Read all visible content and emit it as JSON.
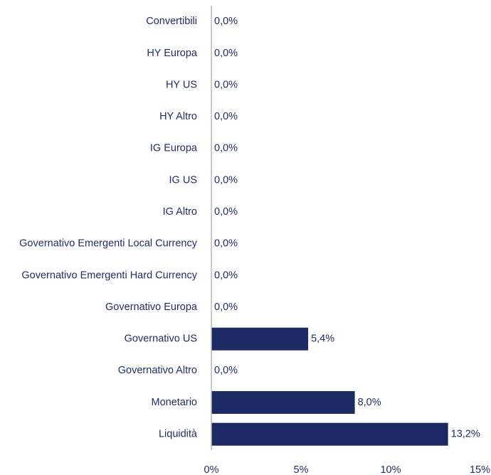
{
  "chart_data": {
    "type": "hbar",
    "categories": [
      "Convertibili",
      "HY Europa",
      "HY US",
      "HY Altro",
      "IG Europa",
      "IG US",
      "IG Altro",
      "Governativo Emergenti Local Currency",
      "Governativo Emergenti Hard Currency",
      "Governativo Europa",
      "Governativo US",
      "Governativo Altro",
      "Monetario",
      "Liquidità"
    ],
    "values": [
      0,
      0,
      0,
      0,
      0,
      0,
      0,
      0,
      0,
      0,
      5.4,
      0,
      8.0,
      13.2
    ],
    "value_labels": [
      "0,0%",
      "0,0%",
      "0,0%",
      "0,0%",
      "0,0%",
      "0,0%",
      "0,0%",
      "0,0%",
      "0,0%",
      "0,0%",
      "5,4%",
      "0,0%",
      "8,0%",
      "13,2%"
    ],
    "color": "#1b2a63",
    "xlim": [
      0,
      15
    ],
    "xticks": [
      {
        "value": 0,
        "label": "0%"
      },
      {
        "value": 5,
        "label": "5%"
      },
      {
        "value": 10,
        "label": "10%"
      },
      {
        "value": 15,
        "label": "15%"
      }
    ]
  }
}
